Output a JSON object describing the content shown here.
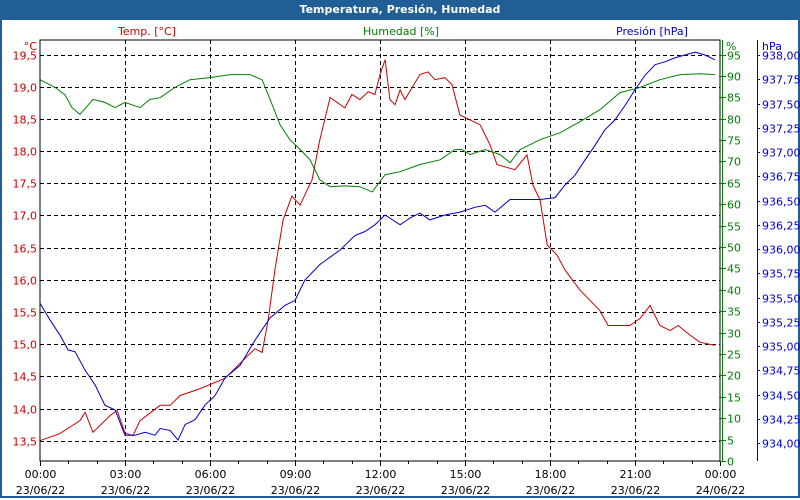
{
  "title": "Temperatura, Presión, Humedad",
  "colors": {
    "temp": "#cc0000",
    "humidity": "#008000",
    "pressure": "#0000cc",
    "titlebar": "#1f5f96"
  },
  "chart_data": {
    "type": "line",
    "title": "Temperatura, Presión, Humedad",
    "xlabel": "",
    "x_ticks": [
      {
        "time": "00:00",
        "date": "23/06/22"
      },
      {
        "time": "03:00",
        "date": "23/06/22"
      },
      {
        "time": "06:00",
        "date": "23/06/22"
      },
      {
        "time": "09:00",
        "date": "23/06/22"
      },
      {
        "time": "12:00",
        "date": "23/06/22"
      },
      {
        "time": "15:00",
        "date": "23/06/22"
      },
      {
        "time": "18:00",
        "date": "23/06/22"
      },
      {
        "time": "21:00",
        "date": "23/06/22"
      },
      {
        "time": "00:00",
        "date": "24/06/22"
      }
    ],
    "x_range_hours": [
      0,
      24
    ],
    "grid": true,
    "axes": {
      "temp": {
        "label": "Temp. [°C]",
        "unit": "°C",
        "range": [
          13.5,
          19.5
        ],
        "ticks": [
          "19,5",
          "19,0",
          "18,5",
          "18,0",
          "17,5",
          "17,0",
          "16,5",
          "16,0",
          "15,5",
          "15,0",
          "14,5",
          "14,0",
          "13,5"
        ]
      },
      "humidity": {
        "label": "Humedad [%]",
        "unit": "%",
        "range": [
          0,
          95
        ],
        "ticks": [
          "95",
          "90",
          "85",
          "80",
          "75",
          "70",
          "65",
          "60",
          "55",
          "50",
          "45",
          "40",
          "35",
          "30",
          "25",
          "20",
          "15",
          "10",
          "5",
          "0"
        ]
      },
      "pressure": {
        "label": "Presión [hPa]",
        "unit": "hPa",
        "range": [
          934.0,
          938.0
        ],
        "ticks": [
          "938,00",
          "937,75",
          "937,50",
          "937,25",
          "937,00",
          "936,75",
          "936,50",
          "936,25",
          "936,00",
          "935,75",
          "935,50",
          "935,25",
          "935,00",
          "934,75",
          "934,50",
          "934,25",
          "934,00"
        ]
      }
    },
    "series": [
      {
        "name": "Temp. [°C]",
        "axis": "temp",
        "points": [
          [
            0,
            13.5
          ],
          [
            0.7,
            13.61
          ],
          [
            1.41,
            13.81
          ],
          [
            1.59,
            13.94
          ],
          [
            1.87,
            13.63
          ],
          [
            2.47,
            13.89
          ],
          [
            2.72,
            13.97
          ],
          [
            3.0,
            13.62
          ],
          [
            3.28,
            13.58
          ],
          [
            3.53,
            13.81
          ],
          [
            4.24,
            14.05
          ],
          [
            4.59,
            14.05
          ],
          [
            4.94,
            14.2
          ],
          [
            5.65,
            14.31
          ],
          [
            6.53,
            14.47
          ],
          [
            7.24,
            14.78
          ],
          [
            7.59,
            14.93
          ],
          [
            7.84,
            14.87
          ],
          [
            8.05,
            15.37
          ],
          [
            8.29,
            16.15
          ],
          [
            8.58,
            16.93
          ],
          [
            8.89,
            17.3
          ],
          [
            9.18,
            17.16
          ],
          [
            9.39,
            17.36
          ],
          [
            9.6,
            17.55
          ],
          [
            9.88,
            18.18
          ],
          [
            10.24,
            18.83
          ],
          [
            10.76,
            18.67
          ],
          [
            11.01,
            18.88
          ],
          [
            11.29,
            18.8
          ],
          [
            11.58,
            18.92
          ],
          [
            11.82,
            18.88
          ],
          [
            12.0,
            19.19
          ],
          [
            12.18,
            19.42
          ],
          [
            12.35,
            18.8
          ],
          [
            12.53,
            18.72
          ],
          [
            12.71,
            18.95
          ],
          [
            12.88,
            18.8
          ],
          [
            13.41,
            19.19
          ],
          [
            13.69,
            19.23
          ],
          [
            13.94,
            19.11
          ],
          [
            14.29,
            19.14
          ],
          [
            14.54,
            19.03
          ],
          [
            14.82,
            18.56
          ],
          [
            15.53,
            18.41
          ],
          [
            15.88,
            18.1
          ],
          [
            16.13,
            17.79
          ],
          [
            16.76,
            17.71
          ],
          [
            17.19,
            17.94
          ],
          [
            17.4,
            17.47
          ],
          [
            17.65,
            17.24
          ],
          [
            17.9,
            16.54
          ],
          [
            18.25,
            16.38
          ],
          [
            18.53,
            16.15
          ],
          [
            19.06,
            15.84
          ],
          [
            19.76,
            15.52
          ],
          [
            20.05,
            15.29
          ],
          [
            20.82,
            15.29
          ],
          [
            21.18,
            15.4
          ],
          [
            21.53,
            15.6
          ],
          [
            21.88,
            15.29
          ],
          [
            22.24,
            15.21
          ],
          [
            22.52,
            15.29
          ],
          [
            22.94,
            15.14
          ],
          [
            23.29,
            15.03
          ],
          [
            23.82,
            14.98
          ]
        ]
      },
      {
        "name": "Humedad [%]",
        "axis": "humidity",
        "points": [
          [
            0,
            89.1
          ],
          [
            0.53,
            87.3
          ],
          [
            0.88,
            85.6
          ],
          [
            1.13,
            82.6
          ],
          [
            1.41,
            81.0
          ],
          [
            1.87,
            84.5
          ],
          [
            2.29,
            83.8
          ],
          [
            2.65,
            82.6
          ],
          [
            3.0,
            83.8
          ],
          [
            3.53,
            82.6
          ],
          [
            3.88,
            84.5
          ],
          [
            4.24,
            84.9
          ],
          [
            4.76,
            87.3
          ],
          [
            5.29,
            89.1
          ],
          [
            6.0,
            89.6
          ],
          [
            6.71,
            90.3
          ],
          [
            7.41,
            90.3
          ],
          [
            7.84,
            89.1
          ],
          [
            8.12,
            84.5
          ],
          [
            8.47,
            78.6
          ],
          [
            8.82,
            75.1
          ],
          [
            9.18,
            72.8
          ],
          [
            9.53,
            70.4
          ],
          [
            9.88,
            65.7
          ],
          [
            10.24,
            64.1
          ],
          [
            10.76,
            64.3
          ],
          [
            11.29,
            64.1
          ],
          [
            11.72,
            62.9
          ],
          [
            12.18,
            66.9
          ],
          [
            12.71,
            67.6
          ],
          [
            13.41,
            69.3
          ],
          [
            14.12,
            70.4
          ],
          [
            14.65,
            72.8
          ],
          [
            14.89,
            72.8
          ],
          [
            15.18,
            71.6
          ],
          [
            15.71,
            72.8
          ],
          [
            16.24,
            71.6
          ],
          [
            16.59,
            69.7
          ],
          [
            16.94,
            72.8
          ],
          [
            17.65,
            75.1
          ],
          [
            18.35,
            76.7
          ],
          [
            19.06,
            79.3
          ],
          [
            19.76,
            82.1
          ],
          [
            20.47,
            86.1
          ],
          [
            21.18,
            87.3
          ],
          [
            21.88,
            89.1
          ],
          [
            22.59,
            90.3
          ],
          [
            23.29,
            90.5
          ],
          [
            23.82,
            90.3
          ]
        ]
      },
      {
        "name": "Presión [hPa]",
        "axis": "pressure",
        "points": [
          [
            0,
            935.44
          ],
          [
            0.35,
            935.27
          ],
          [
            0.71,
            935.11
          ],
          [
            0.99,
            934.96
          ],
          [
            1.24,
            934.94
          ],
          [
            1.59,
            934.75
          ],
          [
            1.94,
            934.6
          ],
          [
            2.29,
            934.39
          ],
          [
            2.65,
            934.34
          ],
          [
            3.0,
            934.08
          ],
          [
            3.35,
            934.08
          ],
          [
            3.71,
            934.11
          ],
          [
            4.06,
            934.08
          ],
          [
            4.24,
            934.15
          ],
          [
            4.59,
            934.13
          ],
          [
            4.87,
            934.03
          ],
          [
            5.12,
            934.19
          ],
          [
            5.47,
            934.24
          ],
          [
            5.82,
            934.39
          ],
          [
            6.18,
            934.49
          ],
          [
            6.53,
            934.67
          ],
          [
            7.06,
            934.8
          ],
          [
            7.59,
            935.06
          ],
          [
            8.12,
            935.29
          ],
          [
            8.65,
            935.42
          ],
          [
            9.0,
            935.47
          ],
          [
            9.35,
            935.68
          ],
          [
            9.88,
            935.84
          ],
          [
            10.59,
            935.99
          ],
          [
            11.12,
            936.14
          ],
          [
            11.47,
            936.18
          ],
          [
            11.82,
            936.25
          ],
          [
            12.18,
            936.35
          ],
          [
            12.71,
            936.25
          ],
          [
            13.06,
            936.32
          ],
          [
            13.41,
            936.37
          ],
          [
            13.76,
            936.3
          ],
          [
            14.29,
            936.35
          ],
          [
            14.82,
            936.38
          ],
          [
            15.35,
            936.43
          ],
          [
            15.71,
            936.45
          ],
          [
            16.06,
            936.38
          ],
          [
            16.59,
            936.51
          ],
          [
            17.12,
            936.51
          ],
          [
            17.65,
            936.51
          ],
          [
            18.18,
            936.53
          ],
          [
            18.53,
            936.66
          ],
          [
            18.88,
            936.76
          ],
          [
            19.24,
            936.92
          ],
          [
            19.59,
            937.07
          ],
          [
            19.94,
            937.23
          ],
          [
            20.29,
            937.33
          ],
          [
            20.65,
            937.48
          ],
          [
            21.0,
            937.64
          ],
          [
            21.35,
            937.79
          ],
          [
            21.71,
            937.9
          ],
          [
            22.06,
            937.93
          ],
          [
            22.41,
            937.97
          ],
          [
            22.76,
            938.0
          ],
          [
            23.12,
            938.03
          ],
          [
            23.47,
            938.0
          ],
          [
            23.82,
            937.95
          ]
        ]
      }
    ]
  }
}
